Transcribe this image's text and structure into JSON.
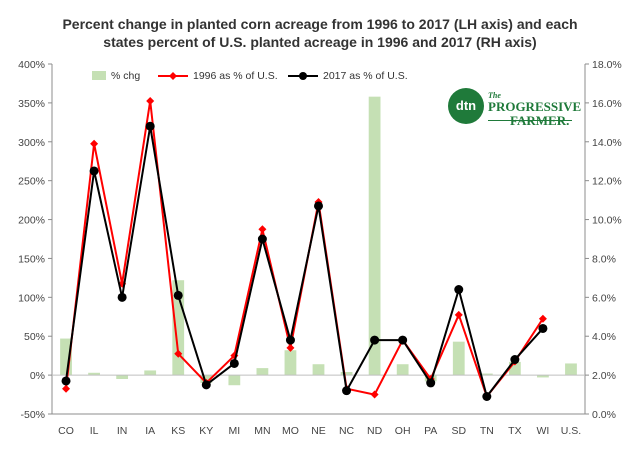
{
  "chart_data": {
    "type": "bar+line",
    "title_line1": "Percent change in planted corn acreage from 1996 to 2017  (LH axis) and each",
    "title_line2": "states percent of U.S.  planted acreage in 1996 and 2017 (RH axis)",
    "categories": [
      "CO",
      "IL",
      "IN",
      "IA",
      "KS",
      "KY",
      "MI",
      "MN",
      "MO",
      "NE",
      "NC",
      "ND",
      "OH",
      "PA",
      "SD",
      "TN",
      "TX",
      "WI",
      "U.S."
    ],
    "left_axis": {
      "min": -50,
      "max": 400,
      "ticks": [
        -50,
        0,
        50,
        100,
        150,
        200,
        250,
        300,
        350,
        400
      ],
      "tick_labels": [
        "-50%",
        "0%",
        "50%",
        "100%",
        "150%",
        "200%",
        "250%",
        "300%",
        "350%",
        "400%"
      ]
    },
    "right_axis": {
      "min": 0,
      "max": 18,
      "ticks": [
        0,
        2,
        4,
        6,
        8,
        10,
        12,
        14,
        16,
        18
      ],
      "tick_labels": [
        "0.0%",
        "2.0%",
        "4.0%",
        "6.0%",
        "8.0%",
        "10.0%",
        "12.0%",
        "14.0%",
        "16.0%",
        "18.0%"
      ]
    },
    "series": [
      {
        "name": "% chg",
        "kind": "bar",
        "axis": "left",
        "color": "#c5e0b4",
        "values": [
          47,
          3,
          -5,
          6,
          122,
          -10,
          -13,
          9,
          32,
          14,
          4,
          358,
          14,
          -8,
          43,
          2,
          17,
          -3,
          15
        ]
      },
      {
        "name": "1996 as % of U.S.",
        "kind": "line",
        "axis": "right",
        "color": "#ff0000",
        "marker": "diamond",
        "values": [
          1.3,
          13.9,
          6.7,
          16.1,
          3.1,
          1.6,
          3.0,
          9.5,
          3.4,
          10.9,
          1.3,
          1.0,
          3.8,
          1.8,
          5.1,
          0.9,
          2.7,
          4.9,
          null
        ]
      },
      {
        "name": "2017  as % of U.S.",
        "kind": "line",
        "axis": "right",
        "color": "#000000",
        "marker": "circle",
        "values": [
          1.7,
          12.5,
          6.0,
          14.8,
          6.1,
          1.5,
          2.6,
          9.0,
          3.8,
          10.7,
          1.2,
          3.8,
          3.8,
          1.6,
          6.4,
          0.9,
          2.8,
          4.4,
          null
        ]
      }
    ],
    "legend": {
      "position": "top",
      "entries": [
        "% chg",
        "1996 as % of U.S.",
        "2017  as % of U.S."
      ]
    },
    "grid": false
  },
  "logo": {
    "badge": "dtn",
    "line1": "The",
    "line2": "PROGRESSIVE",
    "line3": "FARMER.",
    "color": "#1f7a3a"
  }
}
